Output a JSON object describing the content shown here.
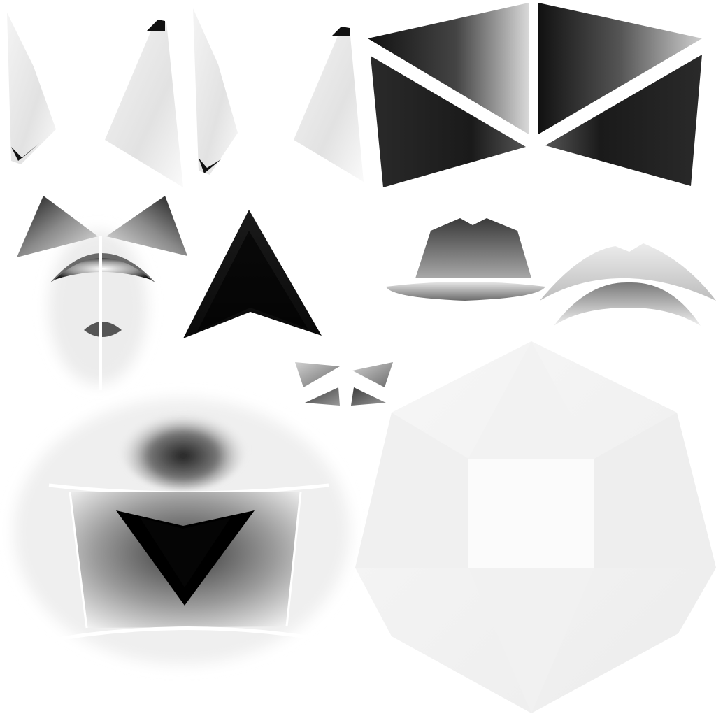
{
  "atlas": {
    "background": "#ffffff",
    "tones": {
      "black": "#000000",
      "dark": "#1e1e1e",
      "mid": "#6a6a6a",
      "light": "#bdbdbd",
      "pale": "#ececec",
      "white": "#ffffff"
    },
    "islands": [
      {
        "name": "tall-wedge-pair-left-island",
        "shape": "wedges"
      },
      {
        "name": "tall-wedge-pair-right-island",
        "shape": "wedges"
      },
      {
        "name": "bowtie-panel-island",
        "shape": "four-triangle-bowtie"
      },
      {
        "name": "fan-and-lens-island",
        "shape": "triangles-and-lenses"
      },
      {
        "name": "black-arrowhead-island",
        "shape": "arrowhead"
      },
      {
        "name": "hat-brim-island",
        "shape": "crown-and-brim"
      },
      {
        "name": "curved-brow-island",
        "shape": "crescents"
      },
      {
        "name": "small-quad-triangles-island",
        "shape": "four-small-triangles"
      },
      {
        "name": "face-panel-island",
        "shape": "quad-with-dark-triangle"
      },
      {
        "name": "pale-octagram-island",
        "shape": "star-polygon"
      }
    ]
  }
}
